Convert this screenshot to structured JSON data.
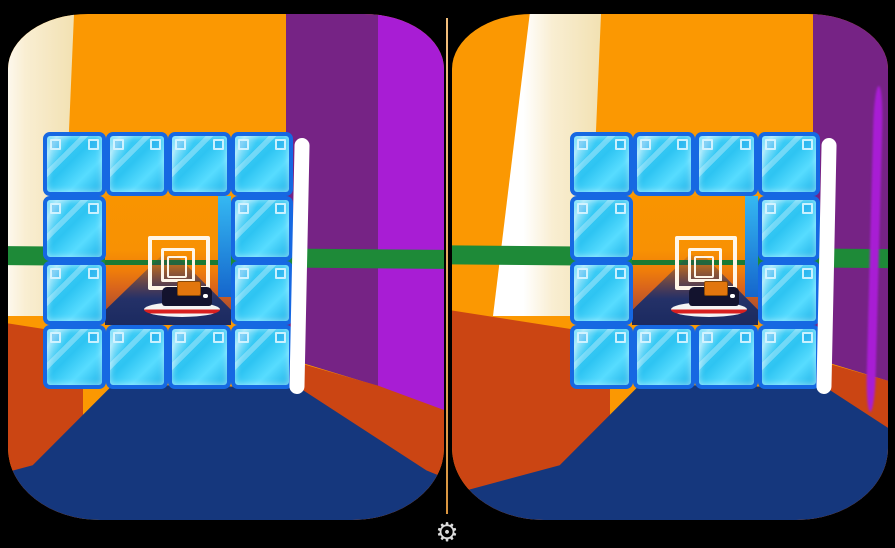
{
  "icons": {
    "settings_gear": "⚙"
  },
  "palette": {
    "background": "#000000",
    "orange_wall": "#FB9802",
    "cream_wall": "#F6E7C3",
    "white_wall": "#FFFFFF",
    "purple_dark": "#762385",
    "purple_bright": "#A81DD4",
    "green_horizon": "#1E8A38",
    "red_lower_wall": "#CB4513",
    "navy_floor": "#15377D",
    "block_face": "#2EC4F2",
    "block_border": "#1668E2",
    "tunnel_orange": "#F89103",
    "tunnel_dusk": "#9A4D33",
    "road_navy": "#1B2A60",
    "frame_white": "#FFF6E8",
    "divider_top": "#F2BE7C",
    "divider_bottom": "#D9953F",
    "vehicle_hull": "#F4F4F4",
    "vehicle_stripe": "#D82020",
    "vehicle_body": "#13132E",
    "vehicle_cargo": "#E2760D",
    "gear_grey": "#DCDCDC"
  }
}
